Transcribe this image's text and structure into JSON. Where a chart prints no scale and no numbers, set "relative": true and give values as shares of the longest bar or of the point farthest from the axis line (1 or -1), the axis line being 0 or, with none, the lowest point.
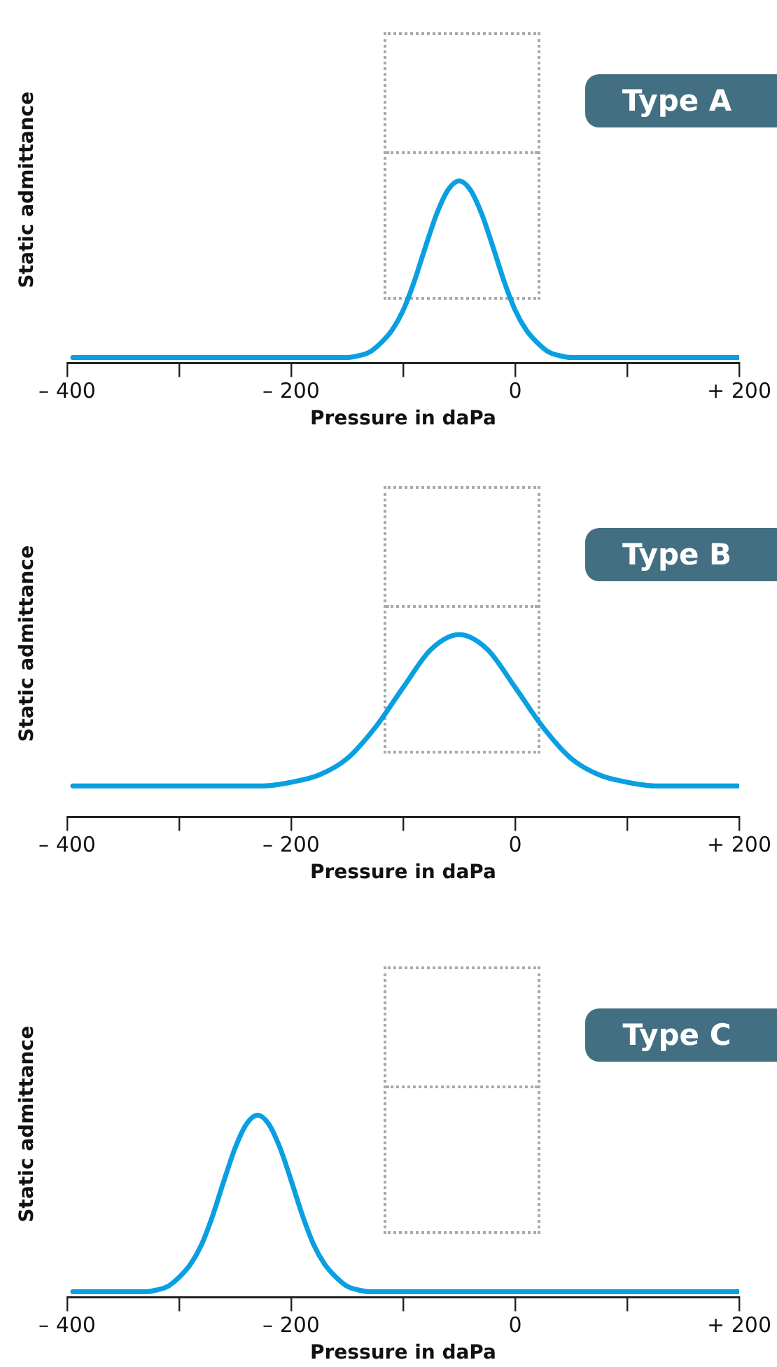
{
  "chart_data": [
    {
      "type": "line",
      "title": "Type A",
      "xlabel": "Pressure in daPa",
      "ylabel": "Static admittance",
      "relative": true,
      "grid": false,
      "legend": false,
      "marker": "none",
      "line_style": "solid",
      "xlim": [
        -400,
        200
      ],
      "xticks": [
        {
          "value": -400,
          "label": "– 400"
        },
        {
          "value": -300,
          "label": null
        },
        {
          "value": -200,
          "label": "– 200"
        },
        {
          "value": -100,
          "label": null
        },
        {
          "value": 0,
          "label": "0"
        },
        {
          "value": 100,
          "label": null
        },
        {
          "value": 200,
          "label": "+ 200"
        }
      ],
      "series": [
        {
          "color": "#0a9fe0",
          "x": [
            -395,
            -150,
            -140,
            -130,
            -120,
            -110,
            -100,
            -90,
            -80,
            -70,
            -60,
            -50,
            -40,
            -30,
            -20,
            -10,
            0,
            10,
            20,
            30,
            40,
            50,
            200
          ],
          "values": [
            0.03,
            0.03,
            0.04,
            0.06,
            0.11,
            0.18,
            0.29,
            0.45,
            0.64,
            0.82,
            0.95,
            1,
            0.95,
            0.82,
            0.64,
            0.45,
            0.29,
            0.18,
            0.11,
            0.06,
            0.04,
            0.03,
            0.03
          ]
        }
      ]
    },
    {
      "type": "line",
      "title": "Type B",
      "xlabel": "Pressure in daPa",
      "ylabel": "Static admittance",
      "relative": true,
      "grid": false,
      "legend": false,
      "marker": "none",
      "line_style": "solid",
      "xlim": [
        -400,
        200
      ],
      "xticks": [
        {
          "value": -400,
          "label": "– 400"
        },
        {
          "value": -300,
          "label": null
        },
        {
          "value": -200,
          "label": "– 200"
        },
        {
          "value": -100,
          "label": null
        },
        {
          "value": 0,
          "label": "0"
        },
        {
          "value": 100,
          "label": null
        },
        {
          "value": 200,
          "label": "+ 200"
        }
      ],
      "series": [
        {
          "color": "#0a9fe0",
          "x": [
            -395,
            -225,
            -200,
            -175,
            -150,
            -125,
            -100,
            -75,
            -50,
            -25,
            0,
            25,
            50,
            75,
            100,
            125,
            200
          ],
          "values": [
            0.17,
            0.17,
            0.19,
            0.23,
            0.32,
            0.49,
            0.71,
            0.92,
            1,
            0.92,
            0.71,
            0.49,
            0.32,
            0.23,
            0.19,
            0.17,
            0.17
          ]
        }
      ]
    },
    {
      "type": "line",
      "title": "Type C",
      "xlabel": "Pressure in daPa",
      "ylabel": "Static admittance",
      "relative": true,
      "grid": false,
      "legend": false,
      "marker": "none",
      "line_style": "solid",
      "xlim": [
        -400,
        200
      ],
      "xticks": [
        {
          "value": -400,
          "label": "– 400"
        },
        {
          "value": -300,
          "label": null
        },
        {
          "value": -200,
          "label": "– 200"
        },
        {
          "value": -100,
          "label": null
        },
        {
          "value": 0,
          "label": "0"
        },
        {
          "value": 100,
          "label": null
        },
        {
          "value": 200,
          "label": "+ 200"
        }
      ],
      "series": [
        {
          "color": "#0a9fe0",
          "x": [
            -395,
            -330,
            -320,
            -310,
            -300,
            -290,
            -280,
            -270,
            -260,
            -250,
            -240,
            -230,
            -220,
            -210,
            -200,
            -190,
            -180,
            -170,
            -160,
            -150,
            -140,
            -130,
            200
          ],
          "values": [
            0.03,
            0.03,
            0.04,
            0.06,
            0.11,
            0.18,
            0.29,
            0.45,
            0.64,
            0.82,
            0.95,
            1,
            0.95,
            0.82,
            0.64,
            0.45,
            0.29,
            0.18,
            0.11,
            0.06,
            0.04,
            0.03,
            0.03
          ]
        }
      ]
    }
  ]
}
